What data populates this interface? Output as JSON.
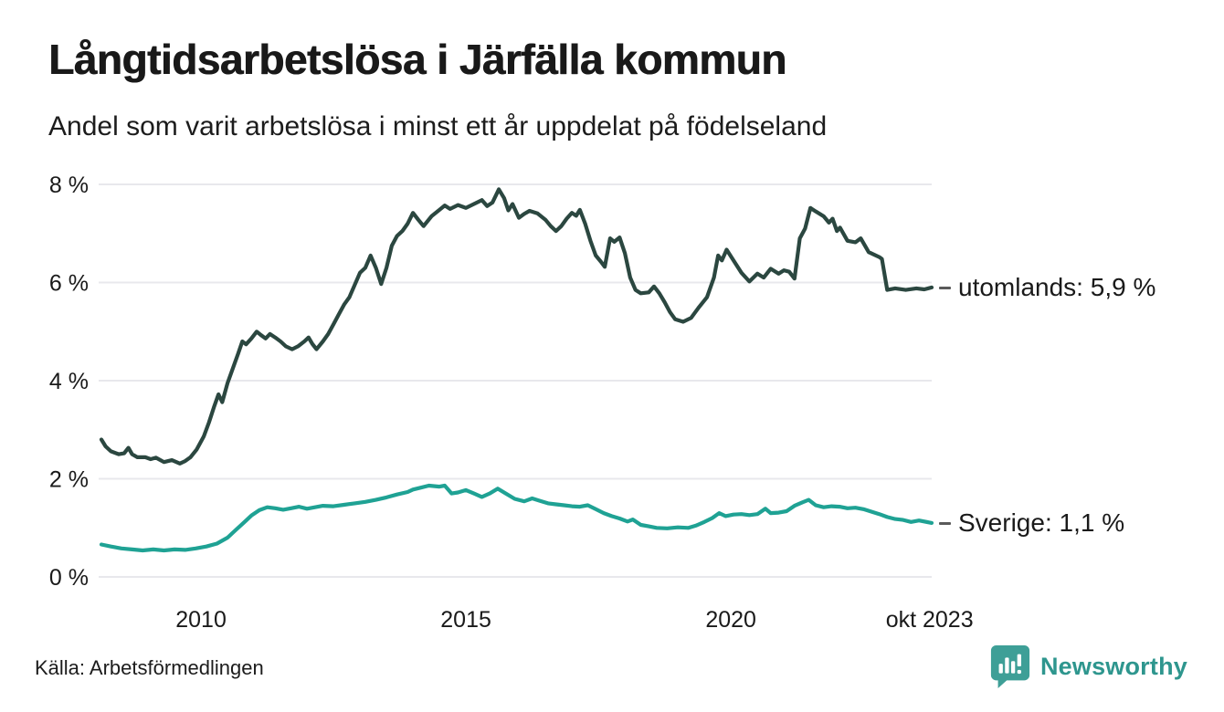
{
  "header": {
    "title": "Långtidsarbetslösa i Järfälla kommun",
    "subtitle": "Andel som varit arbetslösa i minst ett år uppdelat på födelseland"
  },
  "footer": {
    "source": "Källa: Arbetsförmedlingen",
    "brand": "Newsworthy"
  },
  "colors": {
    "utomlands": "#2b4740",
    "sverige": "#1fa294",
    "grid": "#e8e8ec",
    "text": "#1a1a1a",
    "brand_text": "#2e968e",
    "brand_icon": "#3e9f97"
  },
  "chart_data": {
    "type": "line",
    "title": "Långtidsarbetslösa i Järfälla kommun",
    "subtitle": "Andel som varit arbetslösa i minst ett år uppdelat på födelseland",
    "unit": "%",
    "grid": true,
    "legend_position": "right-end-labels",
    "x_domain": [
      2008.12,
      2023.79
    ],
    "y_domain": [
      0,
      8
    ],
    "y_ticks": [
      {
        "label": "0 %",
        "value": 0
      },
      {
        "label": "2 %",
        "value": 2
      },
      {
        "label": "4 %",
        "value": 4
      },
      {
        "label": "6 %",
        "value": 6
      },
      {
        "label": "8 %",
        "value": 8
      }
    ],
    "x_ticks": [
      {
        "label": "2010",
        "value": 2010
      },
      {
        "label": "2015",
        "value": 2015
      },
      {
        "label": "2020",
        "value": 2020
      },
      {
        "label": "okt 2023",
        "value": 2023.75
      }
    ],
    "series": [
      {
        "name": "utomlands",
        "end_label": "utomlands: 5,9 %",
        "last_value": "5,9 %",
        "color_key": "utomlands",
        "label_center_y_value": 5.9,
        "points": [
          [
            2008.12,
            2.8
          ],
          [
            2008.2,
            2.66
          ],
          [
            2008.3,
            2.56
          ],
          [
            2008.45,
            2.5
          ],
          [
            2008.55,
            2.52
          ],
          [
            2008.63,
            2.63
          ],
          [
            2008.7,
            2.5
          ],
          [
            2008.8,
            2.44
          ],
          [
            2008.95,
            2.44
          ],
          [
            2009.05,
            2.4
          ],
          [
            2009.15,
            2.43
          ],
          [
            2009.3,
            2.34
          ],
          [
            2009.45,
            2.38
          ],
          [
            2009.6,
            2.31
          ],
          [
            2009.7,
            2.36
          ],
          [
            2009.8,
            2.44
          ],
          [
            2009.92,
            2.6
          ],
          [
            2010.05,
            2.86
          ],
          [
            2010.15,
            3.15
          ],
          [
            2010.25,
            3.48
          ],
          [
            2010.33,
            3.72
          ],
          [
            2010.4,
            3.56
          ],
          [
            2010.5,
            3.95
          ],
          [
            2010.6,
            4.25
          ],
          [
            2010.7,
            4.55
          ],
          [
            2010.78,
            4.8
          ],
          [
            2010.85,
            4.74
          ],
          [
            2010.95,
            4.86
          ],
          [
            2011.05,
            5.0
          ],
          [
            2011.13,
            4.93
          ],
          [
            2011.22,
            4.86
          ],
          [
            2011.3,
            4.95
          ],
          [
            2011.4,
            4.88
          ],
          [
            2011.5,
            4.8
          ],
          [
            2011.6,
            4.7
          ],
          [
            2011.72,
            4.64
          ],
          [
            2011.83,
            4.7
          ],
          [
            2011.95,
            4.8
          ],
          [
            2012.03,
            4.88
          ],
          [
            2012.1,
            4.75
          ],
          [
            2012.18,
            4.64
          ],
          [
            2012.3,
            4.8
          ],
          [
            2012.4,
            4.95
          ],
          [
            2012.5,
            5.15
          ],
          [
            2012.6,
            5.35
          ],
          [
            2012.7,
            5.55
          ],
          [
            2012.8,
            5.7
          ],
          [
            2012.9,
            5.95
          ],
          [
            2013.0,
            6.2
          ],
          [
            2013.1,
            6.3
          ],
          [
            2013.2,
            6.55
          ],
          [
            2013.3,
            6.3
          ],
          [
            2013.4,
            5.97
          ],
          [
            2013.5,
            6.3
          ],
          [
            2013.6,
            6.75
          ],
          [
            2013.7,
            6.95
          ],
          [
            2013.8,
            7.05
          ],
          [
            2013.9,
            7.2
          ],
          [
            2014.0,
            7.42
          ],
          [
            2014.1,
            7.28
          ],
          [
            2014.2,
            7.15
          ],
          [
            2014.35,
            7.35
          ],
          [
            2014.5,
            7.48
          ],
          [
            2014.6,
            7.57
          ],
          [
            2014.7,
            7.5
          ],
          [
            2014.85,
            7.58
          ],
          [
            2015.0,
            7.52
          ],
          [
            2015.15,
            7.6
          ],
          [
            2015.3,
            7.68
          ],
          [
            2015.4,
            7.56
          ],
          [
            2015.5,
            7.63
          ],
          [
            2015.62,
            7.9
          ],
          [
            2015.72,
            7.72
          ],
          [
            2015.8,
            7.47
          ],
          [
            2015.88,
            7.6
          ],
          [
            2016.0,
            7.32
          ],
          [
            2016.1,
            7.4
          ],
          [
            2016.2,
            7.46
          ],
          [
            2016.35,
            7.41
          ],
          [
            2016.5,
            7.28
          ],
          [
            2016.6,
            7.15
          ],
          [
            2016.7,
            7.05
          ],
          [
            2016.8,
            7.15
          ],
          [
            2016.9,
            7.3
          ],
          [
            2017.0,
            7.42
          ],
          [
            2017.08,
            7.36
          ],
          [
            2017.15,
            7.48
          ],
          [
            2017.25,
            7.2
          ],
          [
            2017.35,
            6.85
          ],
          [
            2017.45,
            6.55
          ],
          [
            2017.55,
            6.42
          ],
          [
            2017.62,
            6.32
          ],
          [
            2017.72,
            6.9
          ],
          [
            2017.8,
            6.83
          ],
          [
            2017.9,
            6.92
          ],
          [
            2018.0,
            6.6
          ],
          [
            2018.1,
            6.1
          ],
          [
            2018.2,
            5.85
          ],
          [
            2018.3,
            5.78
          ],
          [
            2018.45,
            5.8
          ],
          [
            2018.55,
            5.92
          ],
          [
            2018.65,
            5.78
          ],
          [
            2018.75,
            5.6
          ],
          [
            2018.85,
            5.4
          ],
          [
            2018.95,
            5.25
          ],
          [
            2019.1,
            5.2
          ],
          [
            2019.25,
            5.28
          ],
          [
            2019.4,
            5.5
          ],
          [
            2019.55,
            5.7
          ],
          [
            2019.68,
            6.1
          ],
          [
            2019.76,
            6.55
          ],
          [
            2019.83,
            6.45
          ],
          [
            2019.92,
            6.67
          ],
          [
            2020.05,
            6.45
          ],
          [
            2020.2,
            6.2
          ],
          [
            2020.35,
            6.02
          ],
          [
            2020.5,
            6.18
          ],
          [
            2020.62,
            6.1
          ],
          [
            2020.75,
            6.28
          ],
          [
            2020.9,
            6.18
          ],
          [
            2021.0,
            6.25
          ],
          [
            2021.1,
            6.22
          ],
          [
            2021.2,
            6.08
          ],
          [
            2021.3,
            6.9
          ],
          [
            2021.4,
            7.1
          ],
          [
            2021.5,
            7.52
          ],
          [
            2021.6,
            7.45
          ],
          [
            2021.75,
            7.35
          ],
          [
            2021.85,
            7.22
          ],
          [
            2021.92,
            7.3
          ],
          [
            2022.0,
            7.05
          ],
          [
            2022.06,
            7.12
          ],
          [
            2022.2,
            6.85
          ],
          [
            2022.35,
            6.82
          ],
          [
            2022.45,
            6.9
          ],
          [
            2022.6,
            6.62
          ],
          [
            2022.8,
            6.52
          ],
          [
            2022.85,
            6.48
          ],
          [
            2022.95,
            5.85
          ],
          [
            2023.1,
            5.88
          ],
          [
            2023.3,
            5.85
          ],
          [
            2023.5,
            5.88
          ],
          [
            2023.65,
            5.86
          ],
          [
            2023.79,
            5.9
          ]
        ]
      },
      {
        "name": "Sverige",
        "end_label": "Sverige: 1,1 %",
        "last_value": "1,1 %",
        "color_key": "sverige",
        "label_center_y_value": 1.1,
        "points": [
          [
            2008.12,
            0.66
          ],
          [
            2008.3,
            0.62
          ],
          [
            2008.5,
            0.58
          ],
          [
            2008.7,
            0.56
          ],
          [
            2008.9,
            0.54
          ],
          [
            2009.1,
            0.56
          ],
          [
            2009.3,
            0.54
          ],
          [
            2009.5,
            0.56
          ],
          [
            2009.7,
            0.55
          ],
          [
            2009.9,
            0.58
          ],
          [
            2010.1,
            0.62
          ],
          [
            2010.3,
            0.68
          ],
          [
            2010.5,
            0.8
          ],
          [
            2010.65,
            0.95
          ],
          [
            2010.8,
            1.1
          ],
          [
            2010.95,
            1.25
          ],
          [
            2011.1,
            1.36
          ],
          [
            2011.25,
            1.42
          ],
          [
            2011.4,
            1.4
          ],
          [
            2011.55,
            1.37
          ],
          [
            2011.7,
            1.4
          ],
          [
            2011.85,
            1.43
          ],
          [
            2012.0,
            1.39
          ],
          [
            2012.15,
            1.42
          ],
          [
            2012.3,
            1.45
          ],
          [
            2012.5,
            1.44
          ],
          [
            2012.7,
            1.47
          ],
          [
            2012.9,
            1.5
          ],
          [
            2013.1,
            1.53
          ],
          [
            2013.3,
            1.57
          ],
          [
            2013.5,
            1.62
          ],
          [
            2013.7,
            1.68
          ],
          [
            2013.9,
            1.73
          ],
          [
            2014.0,
            1.78
          ],
          [
            2014.15,
            1.82
          ],
          [
            2014.3,
            1.86
          ],
          [
            2014.5,
            1.84
          ],
          [
            2014.6,
            1.86
          ],
          [
            2014.73,
            1.7
          ],
          [
            2014.85,
            1.72
          ],
          [
            2015.0,
            1.77
          ],
          [
            2015.15,
            1.7
          ],
          [
            2015.3,
            1.63
          ],
          [
            2015.45,
            1.7
          ],
          [
            2015.6,
            1.8
          ],
          [
            2015.75,
            1.7
          ],
          [
            2015.92,
            1.59
          ],
          [
            2016.1,
            1.54
          ],
          [
            2016.25,
            1.6
          ],
          [
            2016.4,
            1.55
          ],
          [
            2016.55,
            1.5
          ],
          [
            2016.7,
            1.48
          ],
          [
            2016.85,
            1.46
          ],
          [
            2017.0,
            1.44
          ],
          [
            2017.15,
            1.43
          ],
          [
            2017.3,
            1.46
          ],
          [
            2017.45,
            1.38
          ],
          [
            2017.6,
            1.3
          ],
          [
            2017.75,
            1.24
          ],
          [
            2017.9,
            1.19
          ],
          [
            2018.05,
            1.13
          ],
          [
            2018.15,
            1.17
          ],
          [
            2018.3,
            1.06
          ],
          [
            2018.45,
            1.03
          ],
          [
            2018.6,
            1.0
          ],
          [
            2018.8,
            0.99
          ],
          [
            2019.0,
            1.01
          ],
          [
            2019.2,
            1.0
          ],
          [
            2019.35,
            1.05
          ],
          [
            2019.5,
            1.12
          ],
          [
            2019.65,
            1.2
          ],
          [
            2019.78,
            1.3
          ],
          [
            2019.9,
            1.24
          ],
          [
            2020.05,
            1.27
          ],
          [
            2020.2,
            1.28
          ],
          [
            2020.35,
            1.26
          ],
          [
            2020.5,
            1.28
          ],
          [
            2020.65,
            1.39
          ],
          [
            2020.75,
            1.3
          ],
          [
            2020.9,
            1.31
          ],
          [
            2021.05,
            1.34
          ],
          [
            2021.2,
            1.45
          ],
          [
            2021.35,
            1.52
          ],
          [
            2021.47,
            1.57
          ],
          [
            2021.6,
            1.46
          ],
          [
            2021.75,
            1.42
          ],
          [
            2021.9,
            1.44
          ],
          [
            2022.05,
            1.43
          ],
          [
            2022.2,
            1.4
          ],
          [
            2022.35,
            1.41
          ],
          [
            2022.5,
            1.38
          ],
          [
            2022.65,
            1.33
          ],
          [
            2022.8,
            1.28
          ],
          [
            2022.95,
            1.22
          ],
          [
            2023.1,
            1.18
          ],
          [
            2023.25,
            1.16
          ],
          [
            2023.4,
            1.12
          ],
          [
            2023.55,
            1.15
          ],
          [
            2023.79,
            1.1
          ]
        ]
      }
    ]
  }
}
